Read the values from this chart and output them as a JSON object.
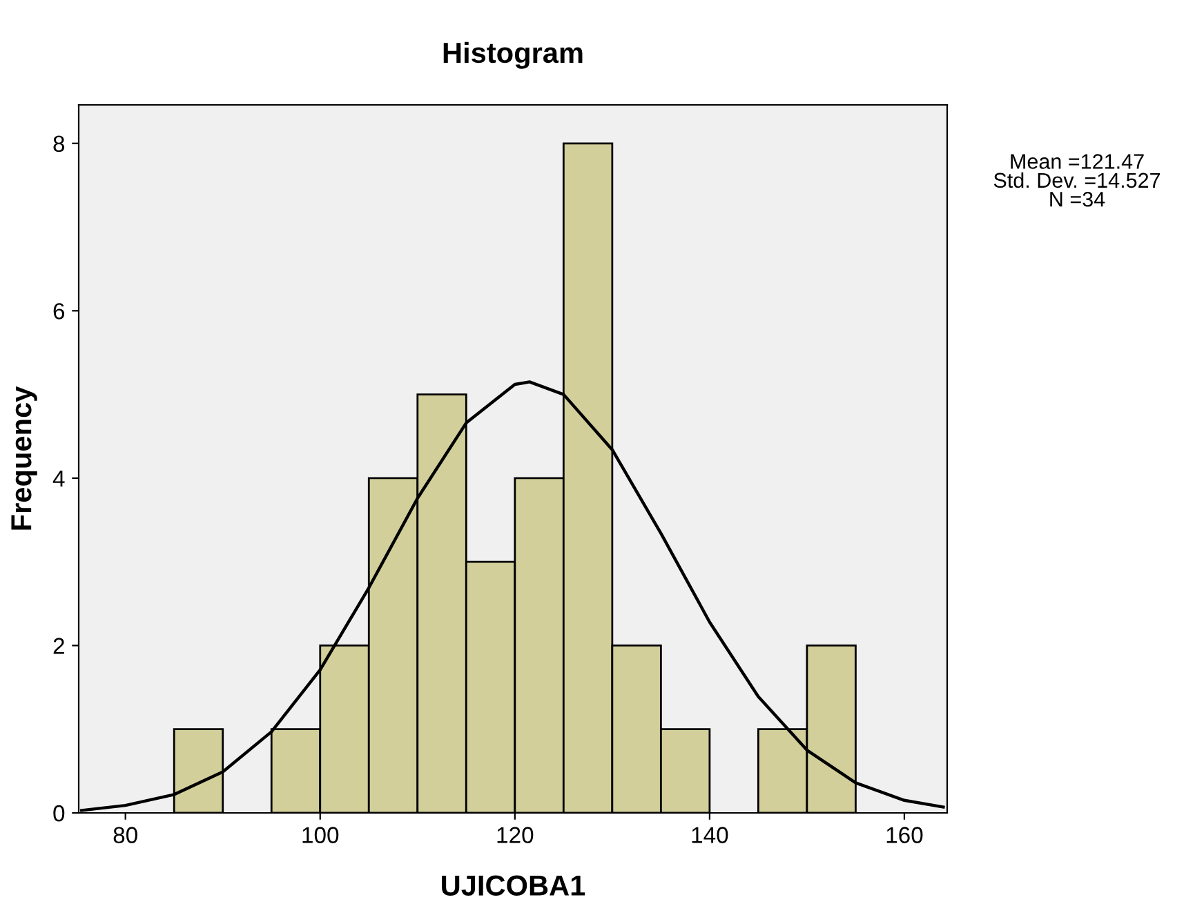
{
  "chart_data": {
    "type": "histogram",
    "title": "Histogram",
    "xlabel": "UJICOBA1",
    "ylabel": "Frequency",
    "bins": [
      85,
      90,
      95,
      100,
      105,
      110,
      115,
      120,
      125,
      130,
      135,
      140,
      145,
      150,
      155
    ],
    "values": [
      1,
      0,
      1,
      2,
      4,
      5,
      3,
      4,
      8,
      2,
      1,
      0,
      1,
      2
    ],
    "color": "#d3cf9b",
    "series": [
      {
        "type": "line",
        "color": "#000000",
        "x": [
          75.5,
          80,
          85,
          90,
          95,
          100,
          105,
          110,
          115,
          120,
          121.5,
          125,
          130,
          135,
          140,
          145,
          150,
          155,
          160,
          164
        ],
        "values": [
          0.03,
          0.09,
          0.22,
          0.49,
          0.97,
          1.71,
          2.69,
          3.76,
          4.66,
          5.12,
          5.15,
          5.0,
          4.34,
          3.34,
          2.28,
          1.39,
          0.75,
          0.36,
          0.15,
          0.07
        ]
      }
    ],
    "xlim": [
      75.2,
      164.4
    ],
    "ylim": [
      0,
      8.46
    ],
    "xticks": [
      80,
      100,
      120,
      140,
      160
    ],
    "yticks": [
      0,
      2,
      4,
      6,
      8
    ],
    "grid": false,
    "legend": false,
    "annotations": [
      "Mean =121.47\nStd. Dev. =14.527\nN =34"
    ]
  }
}
